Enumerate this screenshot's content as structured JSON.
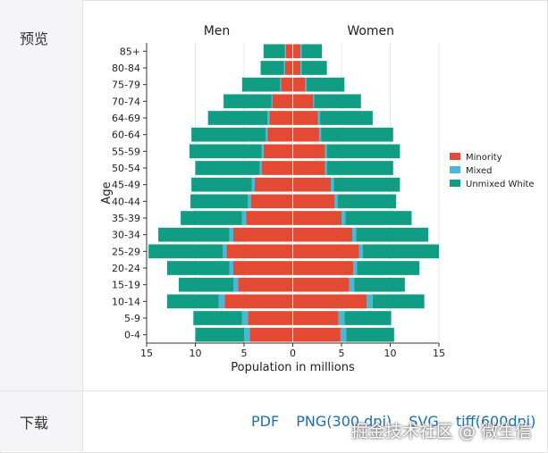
{
  "labels": {
    "preview": "预览",
    "download": "下载"
  },
  "download_links": [
    "PDF",
    "PNG(300 dpi)",
    "SVG",
    "tiff(600dpi)"
  ],
  "watermark": "掘金技术社区 @ 微生信",
  "colors": {
    "minority": "#e24a33",
    "mixed": "#4db6d6",
    "unmixed": "#119c84"
  },
  "chart_data": {
    "type": "bar",
    "orientation": "horizontal-population-pyramid",
    "title_left": "Men",
    "title_right": "Women",
    "xlabel": "Population in millions",
    "ylabel": "Age",
    "xlim": [
      -15,
      15
    ],
    "xticks": [
      -15,
      -10,
      -5,
      0,
      5,
      10,
      15
    ],
    "xtick_labels": [
      "15",
      "10",
      "5",
      "0",
      "5",
      "10",
      "15"
    ],
    "categories": [
      "0-4",
      "5-9",
      "10-14",
      "15-19",
      "20-24",
      "25-29",
      "30-34",
      "35-39",
      "40-44",
      "45-49",
      "50-54",
      "55-59",
      "60-64",
      "64-69",
      "70-74",
      "75-79",
      "80-84",
      "85+"
    ],
    "legend": [
      "Minority",
      "Mixed",
      "Unmixed White"
    ],
    "legend_position": "right",
    "men": {
      "minority": [
        4.4,
        4.6,
        7.0,
        5.6,
        6.1,
        6.8,
        6.1,
        4.8,
        4.3,
        3.9,
        3.2,
        3.0,
        2.6,
        2.4,
        2.1,
        1.2,
        0.8,
        0.7
      ],
      "mixed": [
        0.6,
        0.6,
        0.6,
        0.5,
        0.4,
        0.4,
        0.4,
        0.4,
        0.3,
        0.3,
        0.2,
        0.2,
        0.2,
        0.2,
        0.1,
        0.1,
        0.1,
        0.1
      ],
      "unmixed": [
        5.0,
        5.0,
        5.3,
        5.6,
        6.4,
        7.6,
        7.3,
        6.3,
        5.9,
        6.2,
        6.6,
        7.4,
        7.6,
        6.1,
        4.9,
        3.9,
        2.4,
        2.2
      ]
    },
    "women": {
      "minority": [
        4.9,
        4.7,
        7.6,
        5.8,
        6.2,
        6.8,
        6.1,
        5.0,
        4.3,
        3.9,
        3.3,
        3.3,
        2.7,
        2.6,
        2.1,
        1.3,
        0.8,
        0.8
      ],
      "mixed": [
        0.6,
        0.6,
        0.6,
        0.5,
        0.4,
        0.4,
        0.4,
        0.4,
        0.3,
        0.3,
        0.2,
        0.2,
        0.2,
        0.2,
        0.1,
        0.1,
        0.1,
        0.1
      ],
      "unmixed": [
        4.9,
        4.8,
        5.3,
        5.2,
        6.4,
        7.8,
        7.4,
        6.8,
        6.0,
        6.8,
        6.8,
        7.5,
        7.4,
        5.4,
        4.8,
        3.9,
        2.6,
        2.1
      ]
    }
  }
}
